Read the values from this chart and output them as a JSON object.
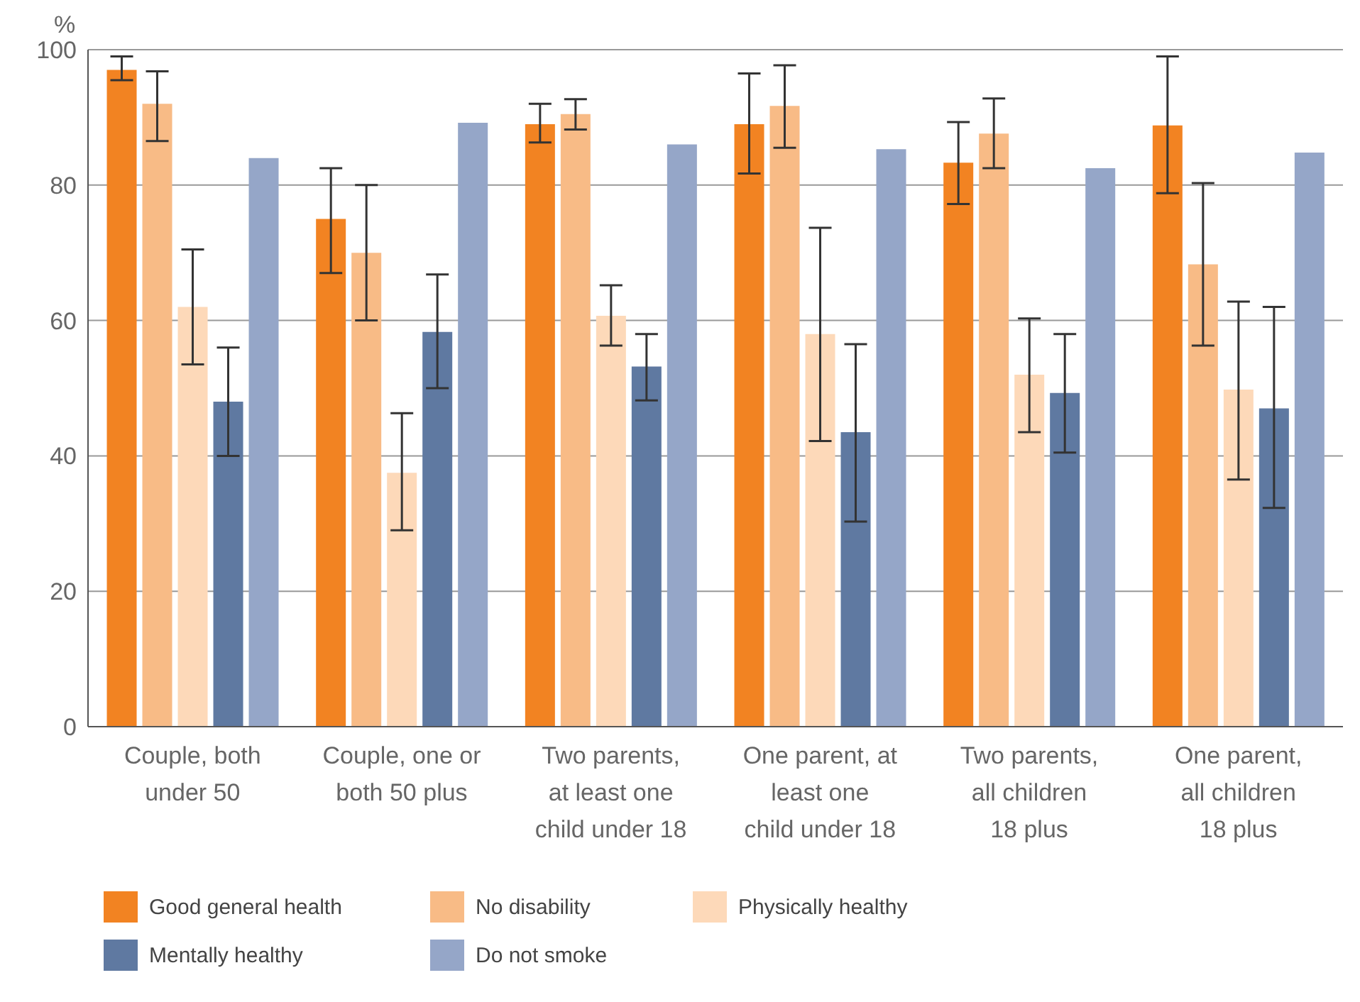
{
  "chart_data": {
    "type": "bar",
    "ylabel": "%",
    "categories": [
      "Couple, both under 50",
      "Couple, one or both 50 plus",
      "Two parents, at least one child under 18",
      "One parent, at least one child under 18",
      "Two parents, all children 18 plus",
      "One parent, all children 18 plus"
    ],
    "series": [
      {
        "name": "Good general health",
        "color": "#f28322",
        "values": [
          97,
          75,
          89,
          89,
          83.3,
          88.8
        ],
        "errors": [
          [
            95.5,
            99
          ],
          [
            67,
            82.5
          ],
          [
            86.3,
            92
          ],
          [
            81.7,
            96.5
          ],
          [
            77.2,
            89.3
          ],
          [
            78.8,
            99
          ]
        ]
      },
      {
        "name": "No disability",
        "color": "#f8bb86",
        "values": [
          92,
          70,
          90.5,
          91.7,
          87.6,
          68.3
        ],
        "errors": [
          [
            86.5,
            96.8
          ],
          [
            60,
            80
          ],
          [
            88.2,
            92.7
          ],
          [
            85.5,
            97.7
          ],
          [
            82.5,
            92.8
          ],
          [
            56.3,
            80.3
          ]
        ]
      },
      {
        "name": "Physically healthy",
        "color": "#fdd9b9",
        "values": [
          62,
          37.5,
          60.7,
          58,
          52,
          49.8
        ],
        "errors": [
          [
            53.5,
            70.5
          ],
          [
            29,
            46.3
          ],
          [
            56.3,
            65.2
          ],
          [
            42.2,
            73.7
          ],
          [
            43.5,
            60.3
          ],
          [
            36.5,
            62.8
          ]
        ]
      },
      {
        "name": "Mentally healthy",
        "color": "#5f79a1",
        "values": [
          48,
          58.3,
          53.2,
          43.5,
          49.3,
          47
        ],
        "errors": [
          [
            40,
            56
          ],
          [
            50,
            66.8
          ],
          [
            48.2,
            58
          ],
          [
            30.3,
            56.5
          ],
          [
            40.5,
            58
          ],
          [
            32.3,
            62
          ]
        ]
      },
      {
        "name": "Do not smoke",
        "color": "#95a6c8",
        "values": [
          84,
          89.2,
          86,
          85.3,
          82.5,
          84.8
        ]
      }
    ],
    "ylim": [
      0,
      100
    ],
    "yticks": [
      0,
      20,
      40,
      60,
      80,
      100
    ],
    "grid": "y",
    "legend": "bottom"
  }
}
